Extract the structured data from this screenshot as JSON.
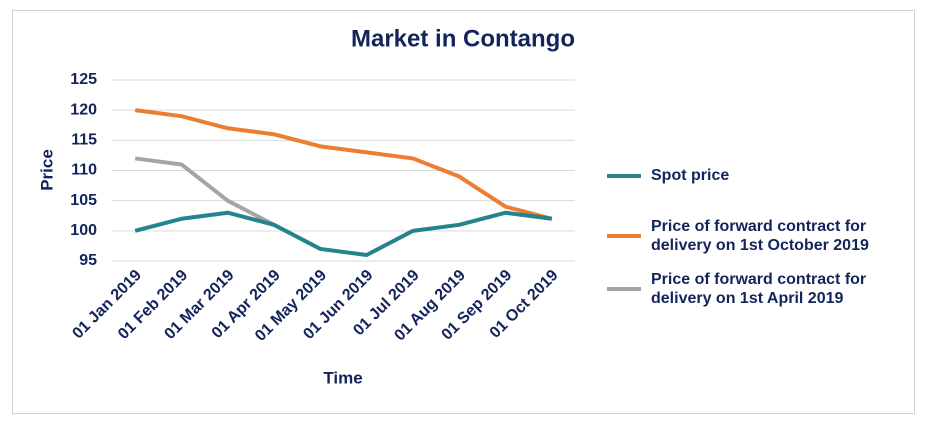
{
  "chart_data": {
    "type": "line",
    "title": "Market in Contango",
    "x_label": "Time",
    "y_label": "Price",
    "categories": [
      "01 Jan 2019",
      "01 Feb 2019",
      "01 Mar 2019",
      "01 Apr 2019",
      "01 May 2019",
      "01 Jun 2019",
      "01 Jul 2019",
      "01 Aug 2019",
      "01 Sep 2019",
      "01 Oct 2019"
    ],
    "series": [
      {
        "name": "Spot price",
        "color": "#23838f",
        "values": [
          100,
          102,
          103,
          101,
          97,
          96,
          100,
          101,
          103,
          102
        ]
      },
      {
        "name": "Price of forward contract for delivery on 1st October 2019",
        "color": "#ed7d31",
        "values": [
          120,
          119,
          117,
          116,
          114,
          113,
          112,
          109,
          104,
          102
        ]
      },
      {
        "name": "Price of forward contract for delivery on 1st April 2019",
        "color": "#a5a5a5",
        "values": [
          112,
          111,
          105,
          101,
          null,
          null,
          null,
          null,
          null,
          null
        ]
      }
    ],
    "ylim": [
      95,
      125
    ],
    "yticks": [
      95,
      100,
      105,
      110,
      115,
      120,
      125
    ],
    "grid": true,
    "legend": "right"
  }
}
